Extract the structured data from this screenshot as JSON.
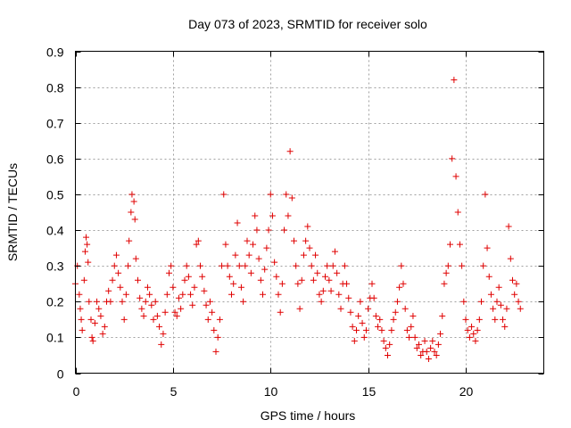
{
  "chart_data": {
    "type": "scatter",
    "title": "Day 073 of 2023, SRMTID for receiver solo",
    "xlabel": "GPS time / hours",
    "ylabel": "SRMTID / TECUs",
    "xlim": [
      0,
      24
    ],
    "ylim": [
      0,
      0.9
    ],
    "xticks": [
      0,
      5,
      10,
      15,
      20
    ],
    "xtick_labels": [
      "0",
      "5",
      "10",
      "15",
      "20"
    ],
    "yticks": [
      0,
      0.1,
      0.2,
      0.3,
      0.4,
      0.5,
      0.6,
      0.7,
      0.8,
      0.9
    ],
    "ytick_labels": [
      "0",
      "0.1",
      "0.2",
      "0.3",
      "0.4",
      "0.5",
      "0.6",
      "0.7",
      "0.8",
      "0.9"
    ],
    "grid": true,
    "marker": "+",
    "series": [
      {
        "name": "SRMTID",
        "color": "#e00000",
        "points": [
          [
            0.0,
            0.25
          ],
          [
            0.1,
            0.3
          ],
          [
            0.2,
            0.22
          ],
          [
            0.25,
            0.18
          ],
          [
            0.3,
            0.15
          ],
          [
            0.35,
            0.12
          ],
          [
            0.45,
            0.26
          ],
          [
            0.5,
            0.34
          ],
          [
            0.55,
            0.38
          ],
          [
            0.6,
            0.36
          ],
          [
            0.65,
            0.31
          ],
          [
            0.7,
            0.2
          ],
          [
            0.8,
            0.15
          ],
          [
            0.85,
            0.1
          ],
          [
            0.9,
            0.09
          ],
          [
            1.0,
            0.14
          ],
          [
            1.1,
            0.2
          ],
          [
            1.2,
            0.18
          ],
          [
            1.3,
            0.16
          ],
          [
            1.4,
            0.11
          ],
          [
            1.5,
            0.13
          ],
          [
            1.6,
            0.2
          ],
          [
            1.7,
            0.23
          ],
          [
            1.8,
            0.2
          ],
          [
            1.9,
            0.26
          ],
          [
            2.0,
            0.3
          ],
          [
            2.1,
            0.33
          ],
          [
            2.2,
            0.28
          ],
          [
            2.3,
            0.24
          ],
          [
            2.4,
            0.2
          ],
          [
            2.5,
            0.15
          ],
          [
            2.6,
            0.22
          ],
          [
            2.7,
            0.3
          ],
          [
            2.75,
            0.37
          ],
          [
            2.85,
            0.45
          ],
          [
            2.9,
            0.5
          ],
          [
            3.0,
            0.48
          ],
          [
            3.05,
            0.43
          ],
          [
            3.1,
            0.32
          ],
          [
            3.2,
            0.26
          ],
          [
            3.3,
            0.21
          ],
          [
            3.4,
            0.18
          ],
          [
            3.5,
            0.16
          ],
          [
            3.6,
            0.2
          ],
          [
            3.7,
            0.24
          ],
          [
            3.8,
            0.22
          ],
          [
            3.9,
            0.19
          ],
          [
            4.0,
            0.15
          ],
          [
            4.1,
            0.2
          ],
          [
            4.2,
            0.16
          ],
          [
            4.3,
            0.13
          ],
          [
            4.4,
            0.08
          ],
          [
            4.5,
            0.11
          ],
          [
            4.6,
            0.17
          ],
          [
            4.7,
            0.22
          ],
          [
            4.8,
            0.28
          ],
          [
            4.9,
            0.3
          ],
          [
            5.0,
            0.24
          ],
          [
            5.1,
            0.17
          ],
          [
            5.2,
            0.16
          ],
          [
            5.3,
            0.21
          ],
          [
            5.4,
            0.18
          ],
          [
            5.5,
            0.22
          ],
          [
            5.6,
            0.26
          ],
          [
            5.7,
            0.3
          ],
          [
            5.8,
            0.27
          ],
          [
            5.9,
            0.22
          ],
          [
            6.0,
            0.19
          ],
          [
            6.1,
            0.24
          ],
          [
            6.2,
            0.36
          ],
          [
            6.3,
            0.37
          ],
          [
            6.4,
            0.3
          ],
          [
            6.5,
            0.27
          ],
          [
            6.6,
            0.23
          ],
          [
            6.7,
            0.19
          ],
          [
            6.8,
            0.15
          ],
          [
            6.9,
            0.2
          ],
          [
            7.0,
            0.17
          ],
          [
            7.1,
            0.12
          ],
          [
            7.2,
            0.06
          ],
          [
            7.3,
            0.1
          ],
          [
            7.4,
            0.15
          ],
          [
            7.5,
            0.3
          ],
          [
            7.6,
            0.5
          ],
          [
            7.7,
            0.36
          ],
          [
            7.8,
            0.3
          ],
          [
            7.9,
            0.27
          ],
          [
            8.0,
            0.22
          ],
          [
            8.1,
            0.25
          ],
          [
            8.2,
            0.33
          ],
          [
            8.3,
            0.42
          ],
          [
            8.4,
            0.3
          ],
          [
            8.5,
            0.24
          ],
          [
            8.6,
            0.2
          ],
          [
            8.7,
            0.3
          ],
          [
            8.8,
            0.37
          ],
          [
            8.9,
            0.33
          ],
          [
            9.0,
            0.28
          ],
          [
            9.1,
            0.36
          ],
          [
            9.2,
            0.44
          ],
          [
            9.3,
            0.4
          ],
          [
            9.4,
            0.32
          ],
          [
            9.5,
            0.26
          ],
          [
            9.6,
            0.22
          ],
          [
            9.7,
            0.29
          ],
          [
            9.8,
            0.35
          ],
          [
            9.9,
            0.4
          ],
          [
            10.0,
            0.5
          ],
          [
            10.1,
            0.44
          ],
          [
            10.2,
            0.31
          ],
          [
            10.3,
            0.27
          ],
          [
            10.4,
            0.22
          ],
          [
            10.5,
            0.17
          ],
          [
            10.6,
            0.25
          ],
          [
            10.7,
            0.4
          ],
          [
            10.8,
            0.5
          ],
          [
            10.9,
            0.44
          ],
          [
            11.0,
            0.62
          ],
          [
            11.1,
            0.49
          ],
          [
            11.2,
            0.37
          ],
          [
            11.3,
            0.3
          ],
          [
            11.4,
            0.25
          ],
          [
            11.5,
            0.18
          ],
          [
            11.6,
            0.26
          ],
          [
            11.7,
            0.33
          ],
          [
            11.8,
            0.37
          ],
          [
            11.9,
            0.41
          ],
          [
            12.0,
            0.35
          ],
          [
            12.1,
            0.3
          ],
          [
            12.2,
            0.26
          ],
          [
            12.3,
            0.33
          ],
          [
            12.4,
            0.28
          ],
          [
            12.5,
            0.22
          ],
          [
            12.6,
            0.2
          ],
          [
            12.7,
            0.23
          ],
          [
            12.8,
            0.27
          ],
          [
            12.9,
            0.3
          ],
          [
            13.0,
            0.26
          ],
          [
            13.1,
            0.23
          ],
          [
            13.2,
            0.3
          ],
          [
            13.3,
            0.34
          ],
          [
            13.4,
            0.28
          ],
          [
            13.5,
            0.22
          ],
          [
            13.6,
            0.18
          ],
          [
            13.7,
            0.25
          ],
          [
            13.8,
            0.3
          ],
          [
            13.9,
            0.25
          ],
          [
            14.0,
            0.21
          ],
          [
            14.1,
            0.17
          ],
          [
            14.2,
            0.13
          ],
          [
            14.3,
            0.09
          ],
          [
            14.4,
            0.12
          ],
          [
            14.5,
            0.16
          ],
          [
            14.6,
            0.2
          ],
          [
            14.7,
            0.14
          ],
          [
            14.8,
            0.1
          ],
          [
            14.9,
            0.12
          ],
          [
            15.0,
            0.18
          ],
          [
            15.1,
            0.21
          ],
          [
            15.2,
            0.25
          ],
          [
            15.3,
            0.21
          ],
          [
            15.4,
            0.16
          ],
          [
            15.5,
            0.13
          ],
          [
            15.6,
            0.15
          ],
          [
            15.7,
            0.12
          ],
          [
            15.8,
            0.09
          ],
          [
            15.9,
            0.07
          ],
          [
            16.0,
            0.05
          ],
          [
            16.1,
            0.08
          ],
          [
            16.2,
            0.12
          ],
          [
            16.3,
            0.15
          ],
          [
            16.4,
            0.17
          ],
          [
            16.5,
            0.2
          ],
          [
            16.6,
            0.24
          ],
          [
            16.7,
            0.3
          ],
          [
            16.8,
            0.25
          ],
          [
            16.9,
            0.18
          ],
          [
            17.0,
            0.12
          ],
          [
            17.1,
            0.1
          ],
          [
            17.2,
            0.13
          ],
          [
            17.3,
            0.16
          ],
          [
            17.4,
            0.1
          ],
          [
            17.5,
            0.07
          ],
          [
            17.6,
            0.08
          ],
          [
            17.7,
            0.05
          ],
          [
            17.8,
            0.06
          ],
          [
            17.9,
            0.09
          ],
          [
            18.0,
            0.06
          ],
          [
            18.1,
            0.04
          ],
          [
            18.2,
            0.07
          ],
          [
            18.3,
            0.09
          ],
          [
            18.4,
            0.06
          ],
          [
            18.5,
            0.05
          ],
          [
            18.6,
            0.08
          ],
          [
            18.7,
            0.11
          ],
          [
            18.8,
            0.16
          ],
          [
            18.9,
            0.25
          ],
          [
            19.0,
            0.28
          ],
          [
            19.1,
            0.3
          ],
          [
            19.2,
            0.36
          ],
          [
            19.3,
            0.6
          ],
          [
            19.4,
            0.82
          ],
          [
            19.5,
            0.55
          ],
          [
            19.6,
            0.45
          ],
          [
            19.7,
            0.36
          ],
          [
            19.8,
            0.3
          ],
          [
            19.9,
            0.2
          ],
          [
            20.0,
            0.15
          ],
          [
            20.1,
            0.12
          ],
          [
            20.2,
            0.1
          ],
          [
            20.3,
            0.13
          ],
          [
            20.4,
            0.11
          ],
          [
            20.5,
            0.09
          ],
          [
            20.6,
            0.12
          ],
          [
            20.7,
            0.15
          ],
          [
            20.8,
            0.2
          ],
          [
            20.9,
            0.3
          ],
          [
            21.0,
            0.5
          ],
          [
            21.1,
            0.35
          ],
          [
            21.2,
            0.27
          ],
          [
            21.3,
            0.22
          ],
          [
            21.4,
            0.18
          ],
          [
            21.5,
            0.15
          ],
          [
            21.6,
            0.2
          ],
          [
            21.7,
            0.24
          ],
          [
            21.8,
            0.19
          ],
          [
            21.9,
            0.15
          ],
          [
            22.0,
            0.13
          ],
          [
            22.1,
            0.18
          ],
          [
            22.2,
            0.41
          ],
          [
            22.3,
            0.32
          ],
          [
            22.4,
            0.26
          ],
          [
            22.5,
            0.22
          ],
          [
            22.6,
            0.25
          ],
          [
            22.7,
            0.2
          ],
          [
            22.8,
            0.18
          ]
        ]
      }
    ]
  }
}
